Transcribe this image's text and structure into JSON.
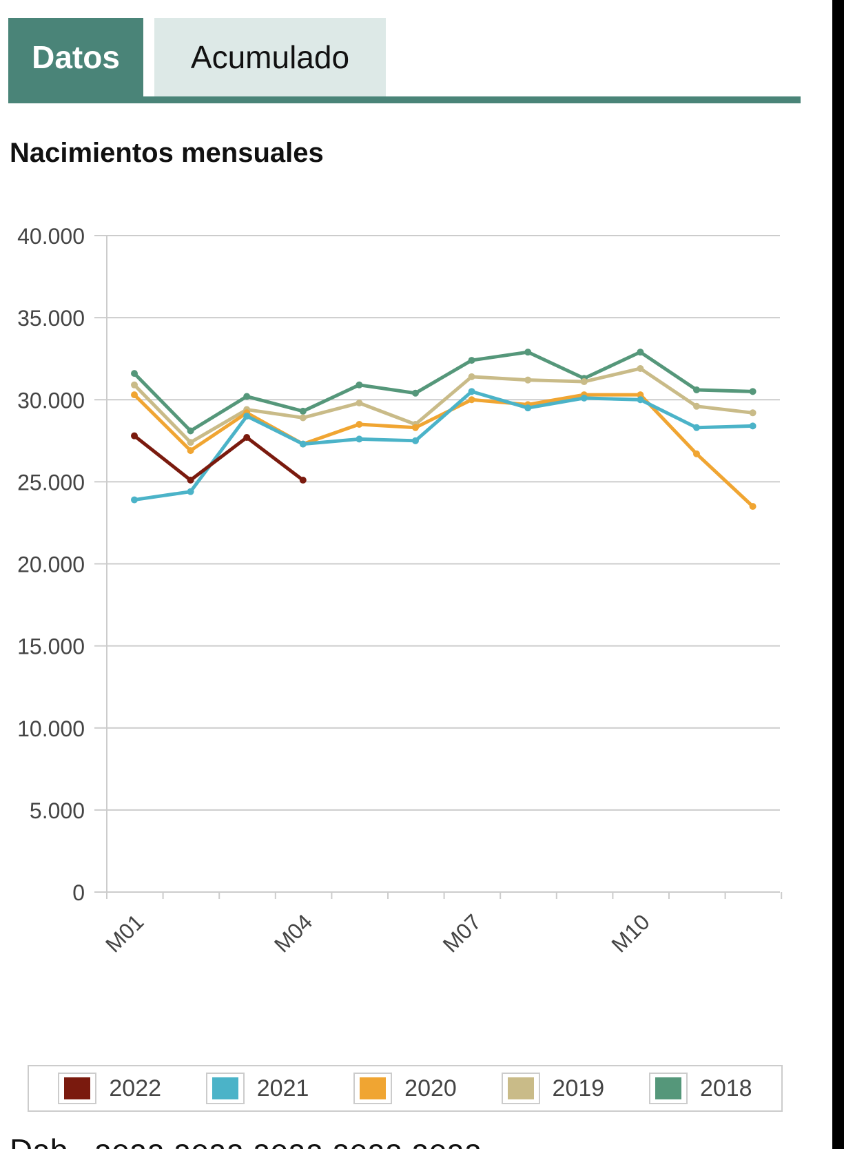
{
  "tabs": [
    {
      "label": "Datos",
      "active": true
    },
    {
      "label": "Acumulado",
      "active": false
    }
  ],
  "colors": {
    "accent": "#4a8478",
    "tab_inactive_bg": "#dde9e7",
    "grid": "#cccccc"
  },
  "chart_data": {
    "type": "line",
    "title": "Nacimientos mensuales",
    "x": [
      "M01",
      "M02",
      "M03",
      "M04",
      "M05",
      "M06",
      "M07",
      "M08",
      "M09",
      "M10",
      "M11",
      "M12"
    ],
    "x_tick_labels": [
      "M01",
      "M04",
      "M07",
      "M10"
    ],
    "ylim": [
      0,
      40000
    ],
    "y_ticks": [
      0,
      5000,
      10000,
      15000,
      20000,
      25000,
      30000,
      35000,
      40000
    ],
    "y_tick_labels": [
      "0",
      "5.000",
      "10.000",
      "15.000",
      "20.000",
      "25.000",
      "30.000",
      "35.000",
      "40.000"
    ],
    "grid": true,
    "legend_position": "bottom",
    "series": [
      {
        "name": "2022",
        "color": "#7a1a0e",
        "values": [
          27800,
          25100,
          27700,
          25100,
          null,
          null,
          null,
          null,
          null,
          null,
          null,
          null
        ]
      },
      {
        "name": "2021",
        "color": "#4bb3c8",
        "values": [
          23900,
          24400,
          29000,
          27300,
          27600,
          27500,
          30500,
          29500,
          30100,
          30000,
          28300,
          28400
        ]
      },
      {
        "name": "2020",
        "color": "#f0a532",
        "values": [
          30300,
          26900,
          29200,
          27300,
          28500,
          28300,
          30000,
          29700,
          30300,
          30300,
          26700,
          23500
        ]
      },
      {
        "name": "2019",
        "color": "#c9bb88",
        "values": [
          30900,
          27400,
          29400,
          28900,
          29800,
          28500,
          31400,
          31200,
          31100,
          31900,
          29600,
          29200
        ]
      },
      {
        "name": "2018",
        "color": "#55977a",
        "values": [
          31600,
          28100,
          30200,
          29300,
          30900,
          30400,
          32400,
          32900,
          31300,
          32900,
          30600,
          30500
        ]
      }
    ]
  },
  "footer_text": "Dab...aeaa aeaa aeaa aeaa aeaa"
}
